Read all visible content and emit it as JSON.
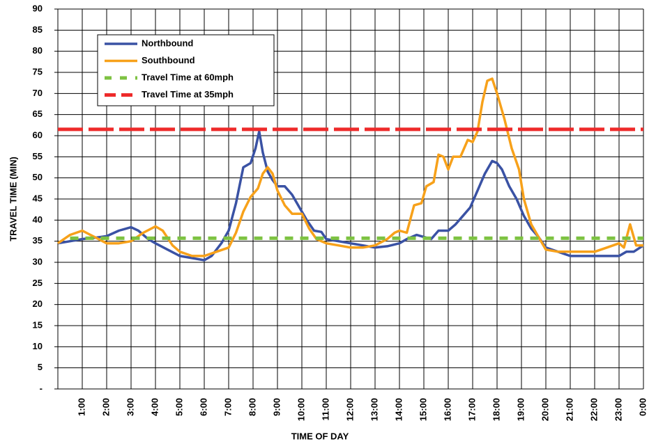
{
  "chart_data": {
    "type": "line",
    "xlabel": "TIME OF DAY",
    "ylabel": "TRAVEL TIME (MIN)",
    "xlim": [
      0,
      24
    ],
    "ylim": [
      0,
      90
    ],
    "xticks": [
      {
        "value": 1,
        "label": "1:00"
      },
      {
        "value": 2,
        "label": "2:00"
      },
      {
        "value": 3,
        "label": "3:00"
      },
      {
        "value": 4,
        "label": "4:00"
      },
      {
        "value": 5,
        "label": "5:00"
      },
      {
        "value": 6,
        "label": "6:00"
      },
      {
        "value": 7,
        "label": "7:00"
      },
      {
        "value": 8,
        "label": "8:00"
      },
      {
        "value": 9,
        "label": "9:00"
      },
      {
        "value": 10,
        "label": "10:00"
      },
      {
        "value": 11,
        "label": "11:00"
      },
      {
        "value": 12,
        "label": "12:00"
      },
      {
        "value": 13,
        "label": "13:00"
      },
      {
        "value": 14,
        "label": "14:00"
      },
      {
        "value": 15,
        "label": "15:00"
      },
      {
        "value": 16,
        "label": "16:00"
      },
      {
        "value": 17,
        "label": "17:00"
      },
      {
        "value": 18,
        "label": "18:00"
      },
      {
        "value": 19,
        "label": "19:00"
      },
      {
        "value": 20,
        "label": "20:00"
      },
      {
        "value": 21,
        "label": "21:00"
      },
      {
        "value": 22,
        "label": "22:00"
      },
      {
        "value": 23,
        "label": "23:00"
      },
      {
        "value": 24,
        "label": "0:00"
      }
    ],
    "yticks": [
      {
        "value": 0,
        "label": "-"
      },
      5,
      10,
      15,
      20,
      25,
      30,
      35,
      40,
      45,
      50,
      55,
      60,
      65,
      70,
      75,
      80,
      85,
      90
    ],
    "grid": true,
    "series": [
      {
        "name": "Northbound",
        "color": "#3a52a4",
        "dash": false,
        "x": [
          0,
          0.5,
          1,
          1.5,
          2,
          2.5,
          3,
          3.3,
          3.7,
          4,
          4.5,
          5,
          5.5,
          6,
          6.3,
          6.7,
          7,
          7.3,
          7.6,
          7.9,
          8.1,
          8.25,
          8.4,
          8.6,
          8.8,
          9,
          9.3,
          9.6,
          9.9,
          10.2,
          10.5,
          10.8,
          11,
          11.5,
          12,
          12.5,
          13,
          13.5,
          14,
          14.3,
          14.7,
          15,
          15.3,
          15.6,
          16,
          16.3,
          16.6,
          16.9,
          17.2,
          17.5,
          17.8,
          18,
          18.2,
          18.5,
          18.8,
          19.1,
          19.4,
          19.7,
          20,
          20.5,
          21,
          22,
          23,
          23.3,
          23.6,
          24
        ],
        "values": [
          34.5,
          35,
          35.5,
          35.8,
          36.2,
          37.5,
          38.3,
          37.5,
          35.5,
          34.5,
          33,
          31.5,
          31,
          30.5,
          31.5,
          34.5,
          37.5,
          44,
          52.5,
          53.5,
          57,
          61,
          56,
          51.5,
          49.5,
          48,
          48,
          46,
          43,
          40,
          37.5,
          37.2,
          35.5,
          35,
          34.5,
          34,
          33.5,
          33.8,
          34.5,
          35.5,
          36.5,
          36,
          35.5,
          37.5,
          37.5,
          39,
          41,
          43,
          47,
          51,
          54,
          53.5,
          52,
          48,
          45,
          41,
          38,
          36,
          33.5,
          32.5,
          31.5,
          31.5,
          31.5,
          32.5,
          32.5,
          34
        ]
      },
      {
        "name": "Southbound",
        "color": "#f7a11a",
        "dash": false,
        "x": [
          0,
          0.5,
          1,
          1.5,
          2,
          2.5,
          3,
          3.5,
          4,
          4.3,
          4.7,
          5,
          5.5,
          6,
          6.5,
          7,
          7.3,
          7.6,
          7.9,
          8.2,
          8.4,
          8.6,
          8.8,
          9,
          9.3,
          9.6,
          10,
          10.3,
          10.6,
          11,
          11.5,
          12,
          12.5,
          13,
          13.5,
          13.8,
          14,
          14.3,
          14.6,
          14.9,
          15.1,
          15.4,
          15.6,
          15.8,
          16,
          16.2,
          16.5,
          16.8,
          17,
          17.2,
          17.4,
          17.6,
          17.8,
          18,
          18.3,
          18.6,
          18.9,
          19.1,
          19.4,
          19.7,
          20,
          20.5,
          21,
          22,
          22.5,
          23,
          23.2,
          23.45,
          23.7,
          24
        ],
        "values": [
          34.5,
          36.5,
          37.5,
          36,
          34.5,
          34.5,
          35,
          37,
          38.5,
          37.5,
          34,
          32.5,
          31.5,
          31.5,
          32.5,
          33.5,
          37,
          42,
          45.5,
          47.5,
          51,
          52.5,
          51,
          47,
          43.5,
          41.5,
          41.5,
          38,
          35.5,
          34.5,
          34,
          33.5,
          33.5,
          34,
          35.5,
          37,
          37.5,
          37,
          43.5,
          44,
          48,
          49,
          55.5,
          55,
          52,
          55,
          55,
          59,
          58.5,
          61,
          68,
          73,
          73.5,
          70,
          64,
          57,
          52,
          45,
          39,
          36,
          33,
          32.5,
          32.5,
          32.5,
          33.5,
          34.5,
          33.5,
          39,
          34,
          34
        ]
      },
      {
        "name": "Travel Time at 60mph",
        "color": "#7dc242",
        "dash": true,
        "x": [
          0.5,
          24
        ],
        "values": [
          35.7,
          35.7
        ]
      },
      {
        "name": "Travel Time at 35mph",
        "color": "#ee2a2a",
        "dash": true,
        "x": [
          0,
          24
        ],
        "values": [
          61.5,
          61.5
        ]
      }
    ]
  }
}
